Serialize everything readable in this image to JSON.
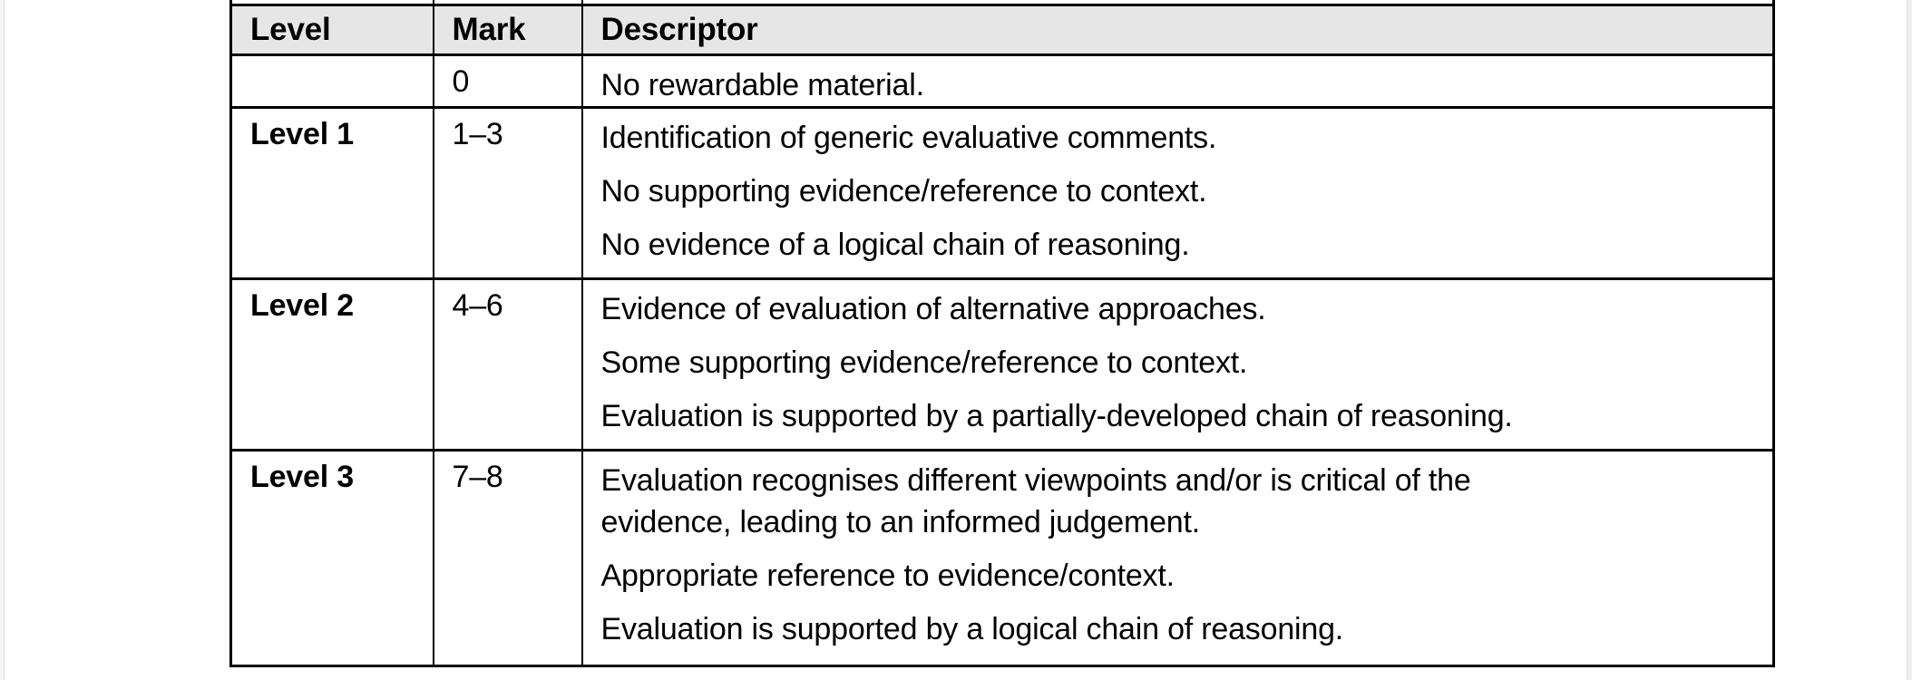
{
  "page": {
    "background_color": "#ffffff",
    "edge_strip_color": "#efefef",
    "edge_line_color": "#dcdcdc"
  },
  "table": {
    "header_bg": "#e6e6e6",
    "border_color": "#000000",
    "text_color": "#000000",
    "headers": [
      "Level",
      "Mark",
      "Descriptor"
    ],
    "rows": [
      {
        "level": "",
        "mark": "0",
        "descriptors": [
          {
            "lines": [
              "No rewardable material."
            ]
          }
        ]
      },
      {
        "level": "Level 1",
        "mark": "1–3",
        "descriptors": [
          {
            "lines": [
              "Identification of generic evaluative comments."
            ]
          },
          {
            "lines": [
              "No supporting evidence/reference to context."
            ]
          },
          {
            "lines": [
              "No evidence of a logical chain of reasoning."
            ]
          }
        ]
      },
      {
        "level": "Level 2",
        "mark": "4–6",
        "descriptors": [
          {
            "lines": [
              "Evidence of evaluation of alternative approaches."
            ]
          },
          {
            "lines": [
              "Some supporting evidence/reference to context."
            ]
          },
          {
            "lines": [
              "Evaluation is supported by a partially-developed chain of reasoning."
            ]
          }
        ]
      },
      {
        "level": "Level 3",
        "mark": "7–8",
        "descriptors": [
          {
            "lines": [
              "Evaluation recognises different viewpoints and/or is critical of the",
              "evidence, leading to an informed judgement."
            ]
          },
          {
            "lines": [
              "Appropriate reference to evidence/context."
            ]
          },
          {
            "lines": [
              "Evaluation is supported by a logical chain of reasoning."
            ]
          }
        ]
      }
    ]
  }
}
